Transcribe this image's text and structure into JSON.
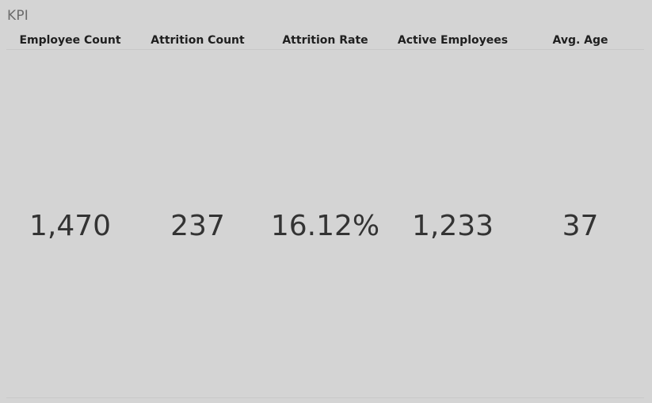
{
  "sheet": {
    "title": "KPI"
  },
  "kpis": [
    {
      "label": "Employee Count",
      "value": "1,470"
    },
    {
      "label": "Attrition Count",
      "value": "237"
    },
    {
      "label": "Attrition Rate",
      "value": "16.12%"
    },
    {
      "label": "Active Employees",
      "value": "1,233"
    },
    {
      "label": "Avg. Age",
      "value": "37"
    }
  ],
  "colors": {
    "background": "#d4d4d4",
    "title": "#6b6b6b",
    "header_text": "#1f1f1f",
    "value_text": "#333333",
    "divider": "#c8c8c8"
  }
}
